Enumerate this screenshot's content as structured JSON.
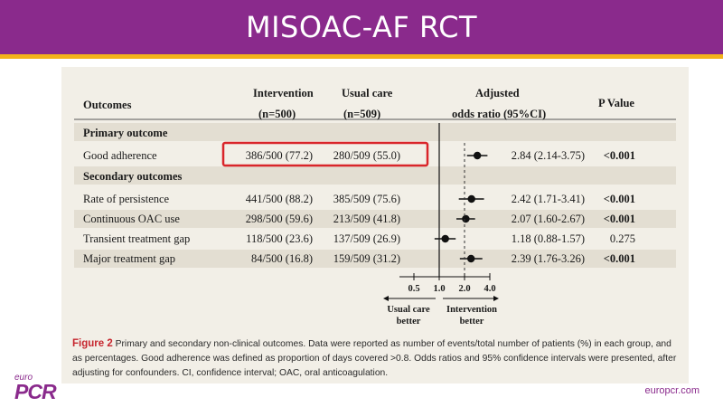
{
  "slide": {
    "title": "MISOAC-AF RCT",
    "logo_small": "euro",
    "logo_big": "PCR",
    "url": "europcr.com",
    "accent": "#8a2a8c",
    "stripe": "#f3b21b"
  },
  "table": {
    "headers": {
      "outcomes": "Outcomes",
      "intervention": "Intervention",
      "intervention_n": "(n=500)",
      "usual": "Usual care",
      "usual_n": "(n=509)",
      "adjusted": "Adjusted",
      "adjusted_sub": "odds ratio (95%CI)",
      "pvalue": "P Value"
    },
    "primary_heading": "Primary outcome",
    "secondary_heading": "Secondary outcomes",
    "rows": [
      {
        "outcome": "Good adherence",
        "intervention": "386/500 (77.2)",
        "usual": "280/509 (55.0)",
        "or_text": "2.84 (2.14-3.75)",
        "p": "<0.001",
        "p_bold": true,
        "or": 2.84,
        "lo": 2.14,
        "hi": 3.75,
        "highlighted": true
      },
      {
        "outcome": "Rate of persistence",
        "intervention": "441/500 (88.2)",
        "usual": "385/509 (75.6)",
        "or_text": "2.42 (1.71-3.41)",
        "p": "<0.001",
        "p_bold": true,
        "or": 2.42,
        "lo": 1.71,
        "hi": 3.41,
        "highlighted": false
      },
      {
        "outcome": "Continuous OAC use",
        "intervention": "298/500 (59.6)",
        "usual": "213/509 (41.8)",
        "or_text": "2.07 (1.60-2.67)",
        "p": "<0.001",
        "p_bold": true,
        "or": 2.07,
        "lo": 1.6,
        "hi": 2.67,
        "highlighted": false
      },
      {
        "outcome": "Transient treatment gap",
        "intervention": "118/500 (23.6)",
        "usual": "137/509 (26.9)",
        "or_text": "1.18 (0.88-1.57)",
        "p": "0.275",
        "p_bold": false,
        "or": 1.18,
        "lo": 0.88,
        "hi": 1.57,
        "highlighted": false
      },
      {
        "outcome": "Major treatment gap",
        "intervention": "84/500 (16.8)",
        "usual": "159/509 (31.2)",
        "or_text": "2.39 (1.76-3.26)",
        "p": "<0.001",
        "p_bold": true,
        "or": 2.39,
        "lo": 1.76,
        "hi": 3.26,
        "highlighted": false
      }
    ],
    "axis": {
      "ticks": [
        "0.5",
        "1.0",
        "2.0",
        "4.0"
      ],
      "tick_values": [
        0.5,
        1.0,
        2.0,
        4.0
      ],
      "left_label_1": "Usual care",
      "left_label_2": "better",
      "right_label_1": "Intervention",
      "right_label_2": "better"
    },
    "highlight_color": "#d9252a"
  },
  "caption": {
    "label": "Figure 2",
    "text": "Primary and secondary non-clinical outcomes. Data were reported as number of events/total number of patients (%) in each group, and as percentages. Good adherence was defined as proportion of days covered >0.8. Odds ratios and 95% confidence intervals were presented, after adjusting for confounders. CI, confidence interval; OAC, oral anticoagulation."
  }
}
